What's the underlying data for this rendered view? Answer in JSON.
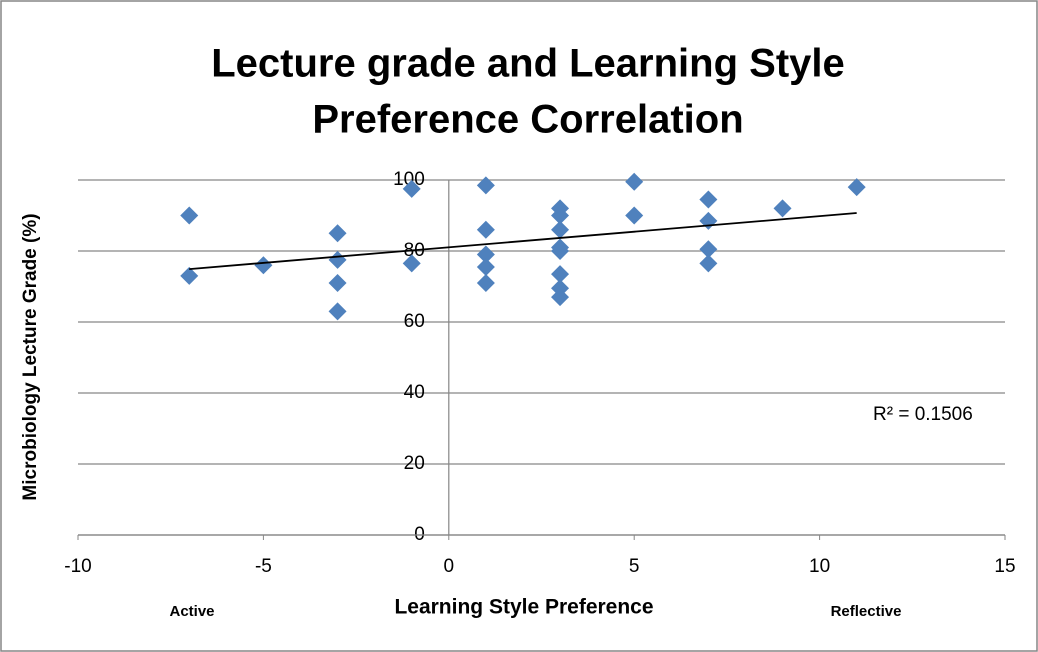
{
  "chart_data": {
    "type": "scatter",
    "title_lines": [
      "Lecture grade and Learning Style",
      "Preference Correlation"
    ],
    "x_label": "Learning Style Preference",
    "y_label": "Microbiology Lecture Grade (%)",
    "annotations": [
      "R² = 0.1506",
      "Active",
      "Reflective"
    ],
    "xlim": [
      -10,
      15
    ],
    "xticks": [
      -10,
      -5,
      0,
      5,
      10,
      15
    ],
    "ylim": [
      0,
      100
    ],
    "yticks": [
      0,
      20,
      40,
      60,
      80,
      100
    ],
    "grid": true,
    "series": [
      {
        "color": "#4f81bd",
        "x": [
          -7,
          -7,
          -5,
          -3,
          -3,
          -3,
          -3,
          -1,
          -1,
          1,
          1,
          1,
          1,
          1,
          3,
          3,
          3,
          3,
          3,
          3,
          3,
          3,
          5,
          5,
          7,
          7,
          7,
          7,
          9,
          11
        ],
        "values": [
          90,
          73,
          76,
          85,
          77.5,
          71,
          63,
          97.5,
          76.5,
          98.5,
          86,
          79,
          75.5,
          71,
          92,
          90,
          86,
          81,
          80,
          73.5,
          69.5,
          67,
          99.5,
          90,
          94.5,
          88.5,
          80.5,
          76.5,
          92,
          98
        ]
      }
    ],
    "trendline": {
      "color": "#000000",
      "x": [
        -7,
        11
      ],
      "y": [
        74.9,
        90.7
      ]
    }
  }
}
